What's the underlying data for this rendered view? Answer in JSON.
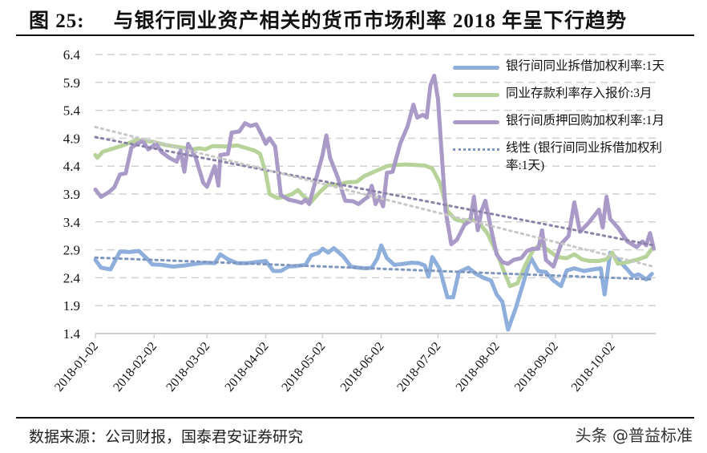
{
  "header": {
    "figure_number": "图 25:",
    "title": "与银行同业资产相关的货币市场利率 2018 年呈下行趋势"
  },
  "footer": {
    "source": "数据来源：公司财报，国泰君安证券研究",
    "watermark": "头条 @普益标准"
  },
  "legend": {
    "items": [
      {
        "label": "银行间同业拆借加权利率:1天",
        "color": "#8eaedc",
        "style": "solid"
      },
      {
        "label": "同业存款利率存入报价:3月",
        "color": "#b7d39a",
        "style": "solid"
      },
      {
        "label": "银行间质押回购加权利率:1月",
        "color": "#a99ac8",
        "style": "solid"
      },
      {
        "label": "线性 (银行间同业拆借加权利率:1天)",
        "color": "#7f97bf",
        "style": "dotted"
      }
    ]
  },
  "chart_data": {
    "type": "line",
    "title": "与银行同业资产相关的货币市场利率 2018 年呈下行趋势",
    "xlabel": "",
    "ylabel": "",
    "ylim": [
      1.4,
      6.4
    ],
    "yticks": [
      6.4,
      5.9,
      5.4,
      4.9,
      4.4,
      3.9,
      3.4,
      2.9,
      2.4,
      1.9,
      1.4
    ],
    "xticks": [
      "2018-01-02",
      "2018-02-02",
      "2018-03-02",
      "2018-04-02",
      "2018-05-02",
      "2018-06-02",
      "2018-07-02",
      "2018-08-02",
      "2018-09-02",
      "2018-10-02"
    ],
    "grid": "horizontal dashed",
    "legend_position": "upper right",
    "series": [
      {
        "name": "银行间同业拆借加权利率:1天",
        "color": "#8eaedc",
        "points": [
          [
            "2018-01-02",
            2.72
          ],
          [
            "2018-01-05",
            2.58
          ],
          [
            "2018-01-10",
            2.55
          ],
          [
            "2018-01-15",
            2.87
          ],
          [
            "2018-01-20",
            2.86
          ],
          [
            "2018-01-25",
            2.88
          ],
          [
            "2018-01-29",
            2.75
          ],
          [
            "2018-02-01",
            2.64
          ],
          [
            "2018-02-06",
            2.63
          ],
          [
            "2018-02-12",
            2.6
          ],
          [
            "2018-02-18",
            2.62
          ],
          [
            "2018-02-24",
            2.65
          ],
          [
            "2018-03-01",
            2.67
          ],
          [
            "2018-03-06",
            2.66
          ],
          [
            "2018-03-09",
            2.82
          ],
          [
            "2018-03-13",
            2.73
          ],
          [
            "2018-03-18",
            2.66
          ],
          [
            "2018-03-23",
            2.66
          ],
          [
            "2018-03-28",
            2.68
          ],
          [
            "2018-04-02",
            2.7
          ],
          [
            "2018-04-06",
            2.52
          ],
          [
            "2018-04-10",
            2.52
          ],
          [
            "2018-04-14",
            2.6
          ],
          [
            "2018-04-18",
            2.61
          ],
          [
            "2018-04-23",
            2.63
          ],
          [
            "2018-04-26",
            2.8
          ],
          [
            "2018-04-30",
            2.85
          ],
          [
            "2018-05-02",
            2.92
          ],
          [
            "2018-05-05",
            2.85
          ],
          [
            "2018-05-08",
            2.93
          ],
          [
            "2018-05-13",
            2.78
          ],
          [
            "2018-05-17",
            2.6
          ],
          [
            "2018-05-21",
            2.58
          ],
          [
            "2018-05-25",
            2.57
          ],
          [
            "2018-05-28",
            2.58
          ],
          [
            "2018-05-31",
            2.75
          ],
          [
            "2018-06-02",
            2.98
          ],
          [
            "2018-06-05",
            2.75
          ],
          [
            "2018-06-09",
            2.63
          ],
          [
            "2018-06-14",
            2.65
          ],
          [
            "2018-06-18",
            2.67
          ],
          [
            "2018-06-22",
            2.66
          ],
          [
            "2018-06-25",
            2.62
          ],
          [
            "2018-06-27",
            2.42
          ],
          [
            "2018-06-29",
            2.77
          ],
          [
            "2018-07-03",
            2.55
          ],
          [
            "2018-07-07",
            2.05
          ],
          [
            "2018-07-10",
            2.05
          ],
          [
            "2018-07-13",
            2.5
          ],
          [
            "2018-07-18",
            2.58
          ],
          [
            "2018-07-22",
            2.47
          ],
          [
            "2018-07-26",
            2.4
          ],
          [
            "2018-07-30",
            2.35
          ],
          [
            "2018-08-02",
            2.1
          ],
          [
            "2018-08-05",
            1.97
          ],
          [
            "2018-08-08",
            1.47
          ],
          [
            "2018-08-12",
            1.85
          ],
          [
            "2018-08-16",
            2.3
          ],
          [
            "2018-08-20",
            2.76
          ],
          [
            "2018-08-24",
            2.52
          ],
          [
            "2018-08-28",
            2.5
          ],
          [
            "2018-09-01",
            2.35
          ],
          [
            "2018-09-05",
            2.25
          ],
          [
            "2018-09-08",
            2.53
          ],
          [
            "2018-09-12",
            2.57
          ],
          [
            "2018-09-17",
            2.52
          ],
          [
            "2018-09-22",
            2.55
          ],
          [
            "2018-09-26",
            2.57
          ],
          [
            "2018-09-28",
            2.1
          ],
          [
            "2018-10-01",
            2.85
          ],
          [
            "2018-10-05",
            2.73
          ],
          [
            "2018-10-10",
            2.55
          ],
          [
            "2018-10-13",
            2.43
          ],
          [
            "2018-10-16",
            2.46
          ],
          [
            "2018-10-20",
            2.37
          ],
          [
            "2018-10-23",
            2.47
          ]
        ]
      },
      {
        "name": "同业存款利率存入报价:3月",
        "color": "#b7d39a",
        "points": [
          [
            "2018-01-02",
            4.6
          ],
          [
            "2018-01-03",
            4.55
          ],
          [
            "2018-01-06",
            4.66
          ],
          [
            "2018-01-12",
            4.72
          ],
          [
            "2018-01-18",
            4.79
          ],
          [
            "2018-01-24",
            4.87
          ],
          [
            "2018-02-01",
            4.84
          ],
          [
            "2018-02-08",
            4.78
          ],
          [
            "2018-02-15",
            4.74
          ],
          [
            "2018-02-22",
            4.7
          ],
          [
            "2018-02-26",
            4.72
          ],
          [
            "2018-03-01",
            4.7
          ],
          [
            "2018-03-05",
            4.76
          ],
          [
            "2018-03-12",
            4.75
          ],
          [
            "2018-03-18",
            4.77
          ],
          [
            "2018-03-23",
            4.72
          ],
          [
            "2018-03-27",
            4.68
          ],
          [
            "2018-03-30",
            4.62
          ],
          [
            "2018-04-02",
            4.28
          ],
          [
            "2018-04-04",
            3.9
          ],
          [
            "2018-04-08",
            3.83
          ],
          [
            "2018-04-12",
            3.85
          ],
          [
            "2018-04-16",
            3.9
          ],
          [
            "2018-04-19",
            3.97
          ],
          [
            "2018-04-22",
            3.86
          ],
          [
            "2018-04-26",
            3.76
          ],
          [
            "2018-05-01",
            3.95
          ],
          [
            "2018-05-05",
            4.07
          ],
          [
            "2018-05-10",
            4.07
          ],
          [
            "2018-05-15",
            4.11
          ],
          [
            "2018-05-20",
            4.12
          ],
          [
            "2018-05-24",
            4.22
          ],
          [
            "2018-05-28",
            4.28
          ],
          [
            "2018-06-01",
            4.34
          ],
          [
            "2018-06-05",
            4.4
          ],
          [
            "2018-06-09",
            4.42
          ],
          [
            "2018-06-15",
            4.43
          ],
          [
            "2018-06-20",
            4.42
          ],
          [
            "2018-06-25",
            4.41
          ],
          [
            "2018-06-29",
            4.36
          ],
          [
            "2018-07-03",
            4.1
          ],
          [
            "2018-07-07",
            3.6
          ],
          [
            "2018-07-11",
            3.45
          ],
          [
            "2018-07-15",
            3.41
          ],
          [
            "2018-07-20",
            3.45
          ],
          [
            "2018-07-24",
            3.37
          ],
          [
            "2018-07-28",
            3.2
          ],
          [
            "2018-08-02",
            2.85
          ],
          [
            "2018-08-06",
            2.5
          ],
          [
            "2018-08-09",
            2.25
          ],
          [
            "2018-08-13",
            2.3
          ],
          [
            "2018-08-17",
            2.62
          ],
          [
            "2018-08-21",
            2.88
          ],
          [
            "2018-08-25",
            3.0
          ],
          [
            "2018-08-29",
            2.9
          ],
          [
            "2018-09-03",
            2.77
          ],
          [
            "2018-09-08",
            2.75
          ],
          [
            "2018-09-12",
            2.82
          ],
          [
            "2018-09-16",
            2.73
          ],
          [
            "2018-09-20",
            2.7
          ],
          [
            "2018-09-25",
            2.7
          ],
          [
            "2018-09-29",
            2.73
          ],
          [
            "2018-10-02",
            2.85
          ],
          [
            "2018-10-05",
            2.65
          ],
          [
            "2018-10-10",
            2.68
          ],
          [
            "2018-10-15",
            2.72
          ],
          [
            "2018-10-20",
            2.78
          ],
          [
            "2018-10-23",
            2.92
          ]
        ]
      },
      {
        "name": "银行间质押回购加权利率:1月",
        "color": "#a99ac8",
        "points": [
          [
            "2018-01-02",
            3.98
          ],
          [
            "2018-01-05",
            3.85
          ],
          [
            "2018-01-09",
            3.93
          ],
          [
            "2018-01-12",
            4.02
          ],
          [
            "2018-01-15",
            4.25
          ],
          [
            "2018-01-18",
            4.27
          ],
          [
            "2018-01-21",
            4.73
          ],
          [
            "2018-01-24",
            4.8
          ],
          [
            "2018-01-27",
            4.85
          ],
          [
            "2018-01-30",
            4.7
          ],
          [
            "2018-02-03",
            4.8
          ],
          [
            "2018-02-06",
            4.65
          ],
          [
            "2018-02-10",
            4.55
          ],
          [
            "2018-02-14",
            4.48
          ],
          [
            "2018-02-16",
            4.68
          ],
          [
            "2018-02-18",
            4.3
          ],
          [
            "2018-02-20",
            4.8
          ],
          [
            "2018-02-24",
            4.55
          ],
          [
            "2018-02-28",
            4.1
          ],
          [
            "2018-03-02",
            4.03
          ],
          [
            "2018-03-06",
            4.4
          ],
          [
            "2018-03-08",
            4.05
          ],
          [
            "2018-03-09",
            4.6
          ],
          [
            "2018-03-13",
            4.62
          ],
          [
            "2018-03-15",
            5.0
          ],
          [
            "2018-03-19",
            5.02
          ],
          [
            "2018-03-22",
            5.17
          ],
          [
            "2018-03-25",
            5.12
          ],
          [
            "2018-03-28",
            5.15
          ],
          [
            "2018-03-31",
            4.95
          ],
          [
            "2018-04-02",
            4.8
          ],
          [
            "2018-04-04",
            4.9
          ],
          [
            "2018-04-07",
            4.75
          ],
          [
            "2018-04-10",
            3.88
          ],
          [
            "2018-04-14",
            3.8
          ],
          [
            "2018-04-18",
            3.77
          ],
          [
            "2018-04-21",
            3.74
          ],
          [
            "2018-04-23",
            3.8
          ],
          [
            "2018-04-25",
            3.72
          ],
          [
            "2018-04-28",
            4.1
          ],
          [
            "2018-05-02",
            4.6
          ],
          [
            "2018-05-04",
            4.95
          ],
          [
            "2018-05-06",
            4.55
          ],
          [
            "2018-05-10",
            4.2
          ],
          [
            "2018-05-14",
            3.78
          ],
          [
            "2018-05-18",
            3.77
          ],
          [
            "2018-05-21",
            3.72
          ],
          [
            "2018-05-24",
            3.8
          ],
          [
            "2018-05-26",
            3.85
          ],
          [
            "2018-05-28",
            4.05
          ],
          [
            "2018-05-30",
            3.72
          ],
          [
            "2018-06-01",
            3.85
          ],
          [
            "2018-06-03",
            3.68
          ],
          [
            "2018-06-05",
            4.28
          ],
          [
            "2018-06-08",
            4.3
          ],
          [
            "2018-06-12",
            4.8
          ],
          [
            "2018-06-16",
            5.12
          ],
          [
            "2018-06-19",
            5.5
          ],
          [
            "2018-06-21",
            5.27
          ],
          [
            "2018-06-24",
            5.32
          ],
          [
            "2018-06-26",
            5.27
          ],
          [
            "2018-06-28",
            5.85
          ],
          [
            "2018-06-30",
            6.02
          ],
          [
            "2018-07-02",
            5.6
          ],
          [
            "2018-07-06",
            3.6
          ],
          [
            "2018-07-09",
            3.0
          ],
          [
            "2018-07-12",
            3.08
          ],
          [
            "2018-07-16",
            3.35
          ],
          [
            "2018-07-19",
            3.42
          ],
          [
            "2018-07-21",
            3.85
          ],
          [
            "2018-07-23",
            3.25
          ],
          [
            "2018-07-25",
            3.6
          ],
          [
            "2018-07-27",
            3.78
          ],
          [
            "2018-07-30",
            3.28
          ],
          [
            "2018-08-02",
            2.82
          ],
          [
            "2018-08-05",
            2.68
          ],
          [
            "2018-08-08",
            2.65
          ],
          [
            "2018-08-11",
            2.72
          ],
          [
            "2018-08-15",
            2.75
          ],
          [
            "2018-08-18",
            2.88
          ],
          [
            "2018-08-21",
            2.92
          ],
          [
            "2018-08-24",
            2.92
          ],
          [
            "2018-08-26",
            3.25
          ],
          [
            "2018-08-28",
            2.72
          ],
          [
            "2018-09-01",
            2.6
          ],
          [
            "2018-09-05",
            3.0
          ],
          [
            "2018-09-09",
            3.15
          ],
          [
            "2018-09-12",
            3.75
          ],
          [
            "2018-09-15",
            3.22
          ],
          [
            "2018-09-20",
            3.4
          ],
          [
            "2018-09-25",
            3.62
          ],
          [
            "2018-09-27",
            3.3
          ],
          [
            "2018-09-29",
            3.85
          ],
          [
            "2018-10-01",
            3.45
          ],
          [
            "2018-10-05",
            3.3
          ],
          [
            "2018-10-10",
            3.05
          ],
          [
            "2018-10-15",
            2.95
          ],
          [
            "2018-10-18",
            3.05
          ],
          [
            "2018-10-20",
            2.98
          ],
          [
            "2018-10-22",
            3.2
          ],
          [
            "2018-10-24",
            2.92
          ]
        ]
      },
      {
        "name": "线性 (银行间同业拆借加权利率:1天)",
        "color": "#7f97bf",
        "style": "dotted",
        "points": [
          [
            "2018-01-02",
            2.76
          ],
          [
            "2018-10-24",
            2.37
          ]
        ]
      },
      {
        "name": "trend (银行间质押回购加权利率:1月)",
        "color": "#8a82a8",
        "style": "dotted",
        "in_legend": false,
        "points": [
          [
            "2018-01-02",
            4.92
          ],
          [
            "2018-10-24",
            2.98
          ]
        ]
      },
      {
        "name": "trend (同业存款利率存入报价:3月)",
        "color": "#c8c8c8",
        "style": "dotted",
        "in_legend": false,
        "points": [
          [
            "2018-01-02",
            5.1
          ],
          [
            "2018-10-24",
            2.6
          ]
        ]
      }
    ]
  }
}
